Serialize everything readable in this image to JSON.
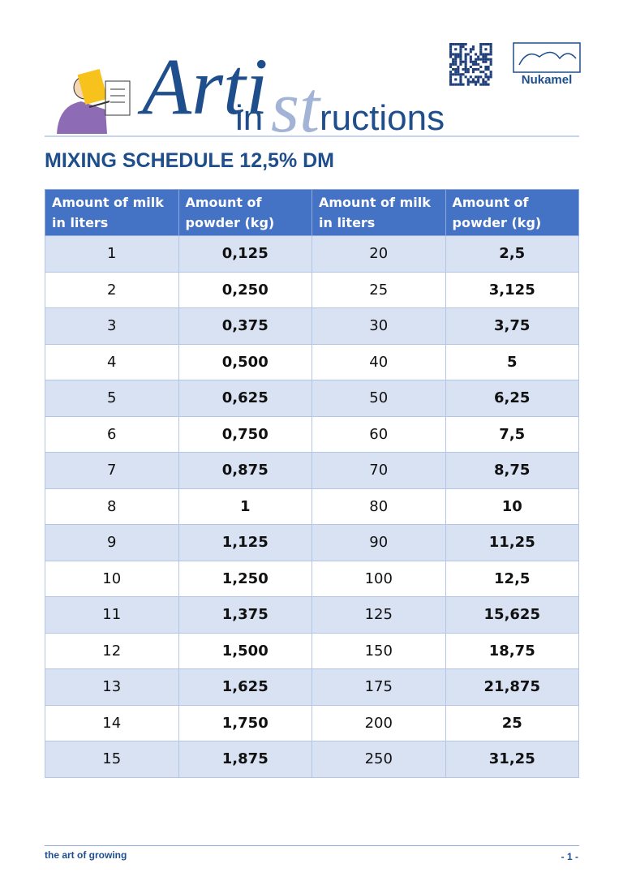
{
  "header": {
    "logo": {
      "part1": "Arti",
      "part2": "in",
      "part3": "st",
      "part4": "ructions"
    },
    "brand": "Nukamel"
  },
  "title": "MIXING SCHEDULE 12,5% DM",
  "table": {
    "headers": [
      "Amount of milk in liters",
      "Amount of powder (kg)",
      "Amount of milk in liters",
      "Amount of powder (kg)"
    ],
    "rows": [
      [
        "1",
        "0,125",
        "20",
        "2,5"
      ],
      [
        "2",
        "0,250",
        "25",
        "3,125"
      ],
      [
        "3",
        "0,375",
        "30",
        "3,75"
      ],
      [
        "4",
        "0,500",
        "40",
        "5"
      ],
      [
        "5",
        "0,625",
        "50",
        "6,25"
      ],
      [
        "6",
        "0,750",
        "60",
        "7,5"
      ],
      [
        "7",
        "0,875",
        "70",
        "8,75"
      ],
      [
        "8",
        "1",
        "80",
        "10"
      ],
      [
        "9",
        "1,125",
        "90",
        "11,25"
      ],
      [
        "10",
        "1,250",
        "100",
        "12,5"
      ],
      [
        "11",
        "1,375",
        "125",
        "15,625"
      ],
      [
        "12",
        "1,500",
        "150",
        "18,75"
      ],
      [
        "13",
        "1,625",
        "175",
        "21,875"
      ],
      [
        "14",
        "1,750",
        "200",
        "25"
      ],
      [
        "15",
        "1,875",
        "250",
        "31,25"
      ]
    ]
  },
  "footer": {
    "slogan": "the art of growing",
    "page": "- 1 -"
  }
}
